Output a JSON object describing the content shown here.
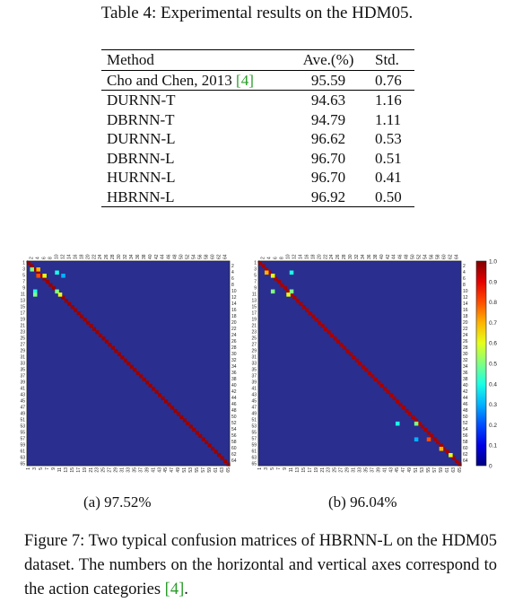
{
  "table": {
    "caption": "Table 4: Experimental results on the HDM05.",
    "headers": [
      "Method",
      "Ave.(%)",
      "Std."
    ],
    "rows": [
      {
        "method": "Cho and Chen, 2013 ",
        "ref": "[4]",
        "ave": "95.59",
        "std": "0.76"
      },
      {
        "method": "DURNN-T",
        "ave": "94.63",
        "std": "1.16"
      },
      {
        "method": "DBRNN-T",
        "ave": "94.79",
        "std": "1.11"
      },
      {
        "method": "DURNN-L",
        "ave": "96.62",
        "std": "0.53"
      },
      {
        "method": "DBRNN-L",
        "ave": "96.70",
        "std": "0.51"
      },
      {
        "method": "HURNN-L",
        "ave": "96.70",
        "std": "0.41"
      },
      {
        "method": "HBRNN-L",
        "ave": "96.92",
        "std": "0.50"
      }
    ]
  },
  "figure": {
    "subcaption_a": "(a) 97.52%",
    "subcaption_b": "(b) 96.04%",
    "caption_part1": "Figure 7: Two typical confusion matrices of HBRNN-L on the HDM05 dataset.  The numbers on the horizontal and vertical axes correspond to the action categories ",
    "caption_ref": "[4]",
    "caption_end": ".",
    "colorbar_ticks": [
      "1.0",
      "0.9",
      "0.8",
      "0.7",
      "0.6",
      "0.5",
      "0.4",
      "0.3",
      "0.2",
      "0.1",
      "0"
    ],
    "colors": {
      "background": "#2a2e8f",
      "diagonal": "#8b1a1a",
      "ref_green": "#2a9c2a"
    }
  },
  "chart_data": [
    {
      "type": "heatmap",
      "title": "(a) 97.52%",
      "n_classes": 65,
      "diagonal_value": 0.975,
      "off_diagonal_cells": [
        {
          "row": 3,
          "col": 2,
          "value": 0.5
        },
        {
          "row": 3,
          "col": 4,
          "value": 0.7
        },
        {
          "row": 5,
          "col": 4,
          "value": 0.8
        },
        {
          "row": 5,
          "col": 6,
          "value": 0.6
        },
        {
          "row": 4,
          "col": 10,
          "value": 0.4
        },
        {
          "row": 5,
          "col": 12,
          "value": 0.3
        },
        {
          "row": 10,
          "col": 3,
          "value": 0.4
        },
        {
          "row": 11,
          "col": 3,
          "value": 0.5
        },
        {
          "row": 10,
          "col": 10,
          "value": 0.5
        },
        {
          "row": 11,
          "col": 11,
          "value": 0.6
        }
      ],
      "colorbar_range": [
        0,
        1
      ]
    },
    {
      "type": "heatmap",
      "title": "(b) 96.04%",
      "n_classes": 65,
      "diagonal_value": 0.96,
      "off_diagonal_cells": [
        {
          "row": 4,
          "col": 3,
          "value": 0.7
        },
        {
          "row": 5,
          "col": 5,
          "value": 0.6
        },
        {
          "row": 4,
          "col": 11,
          "value": 0.4
        },
        {
          "row": 10,
          "col": 5,
          "value": 0.5
        },
        {
          "row": 11,
          "col": 10,
          "value": 0.6
        },
        {
          "row": 10,
          "col": 11,
          "value": 0.5
        },
        {
          "row": 52,
          "col": 45,
          "value": 0.4
        },
        {
          "row": 52,
          "col": 51,
          "value": 0.5
        },
        {
          "row": 57,
          "col": 51,
          "value": 0.3
        },
        {
          "row": 57,
          "col": 55,
          "value": 0.8
        },
        {
          "row": 60,
          "col": 59,
          "value": 0.7
        },
        {
          "row": 62,
          "col": 62,
          "value": 0.6
        }
      ],
      "colorbar_range": [
        0,
        1
      ]
    }
  ]
}
